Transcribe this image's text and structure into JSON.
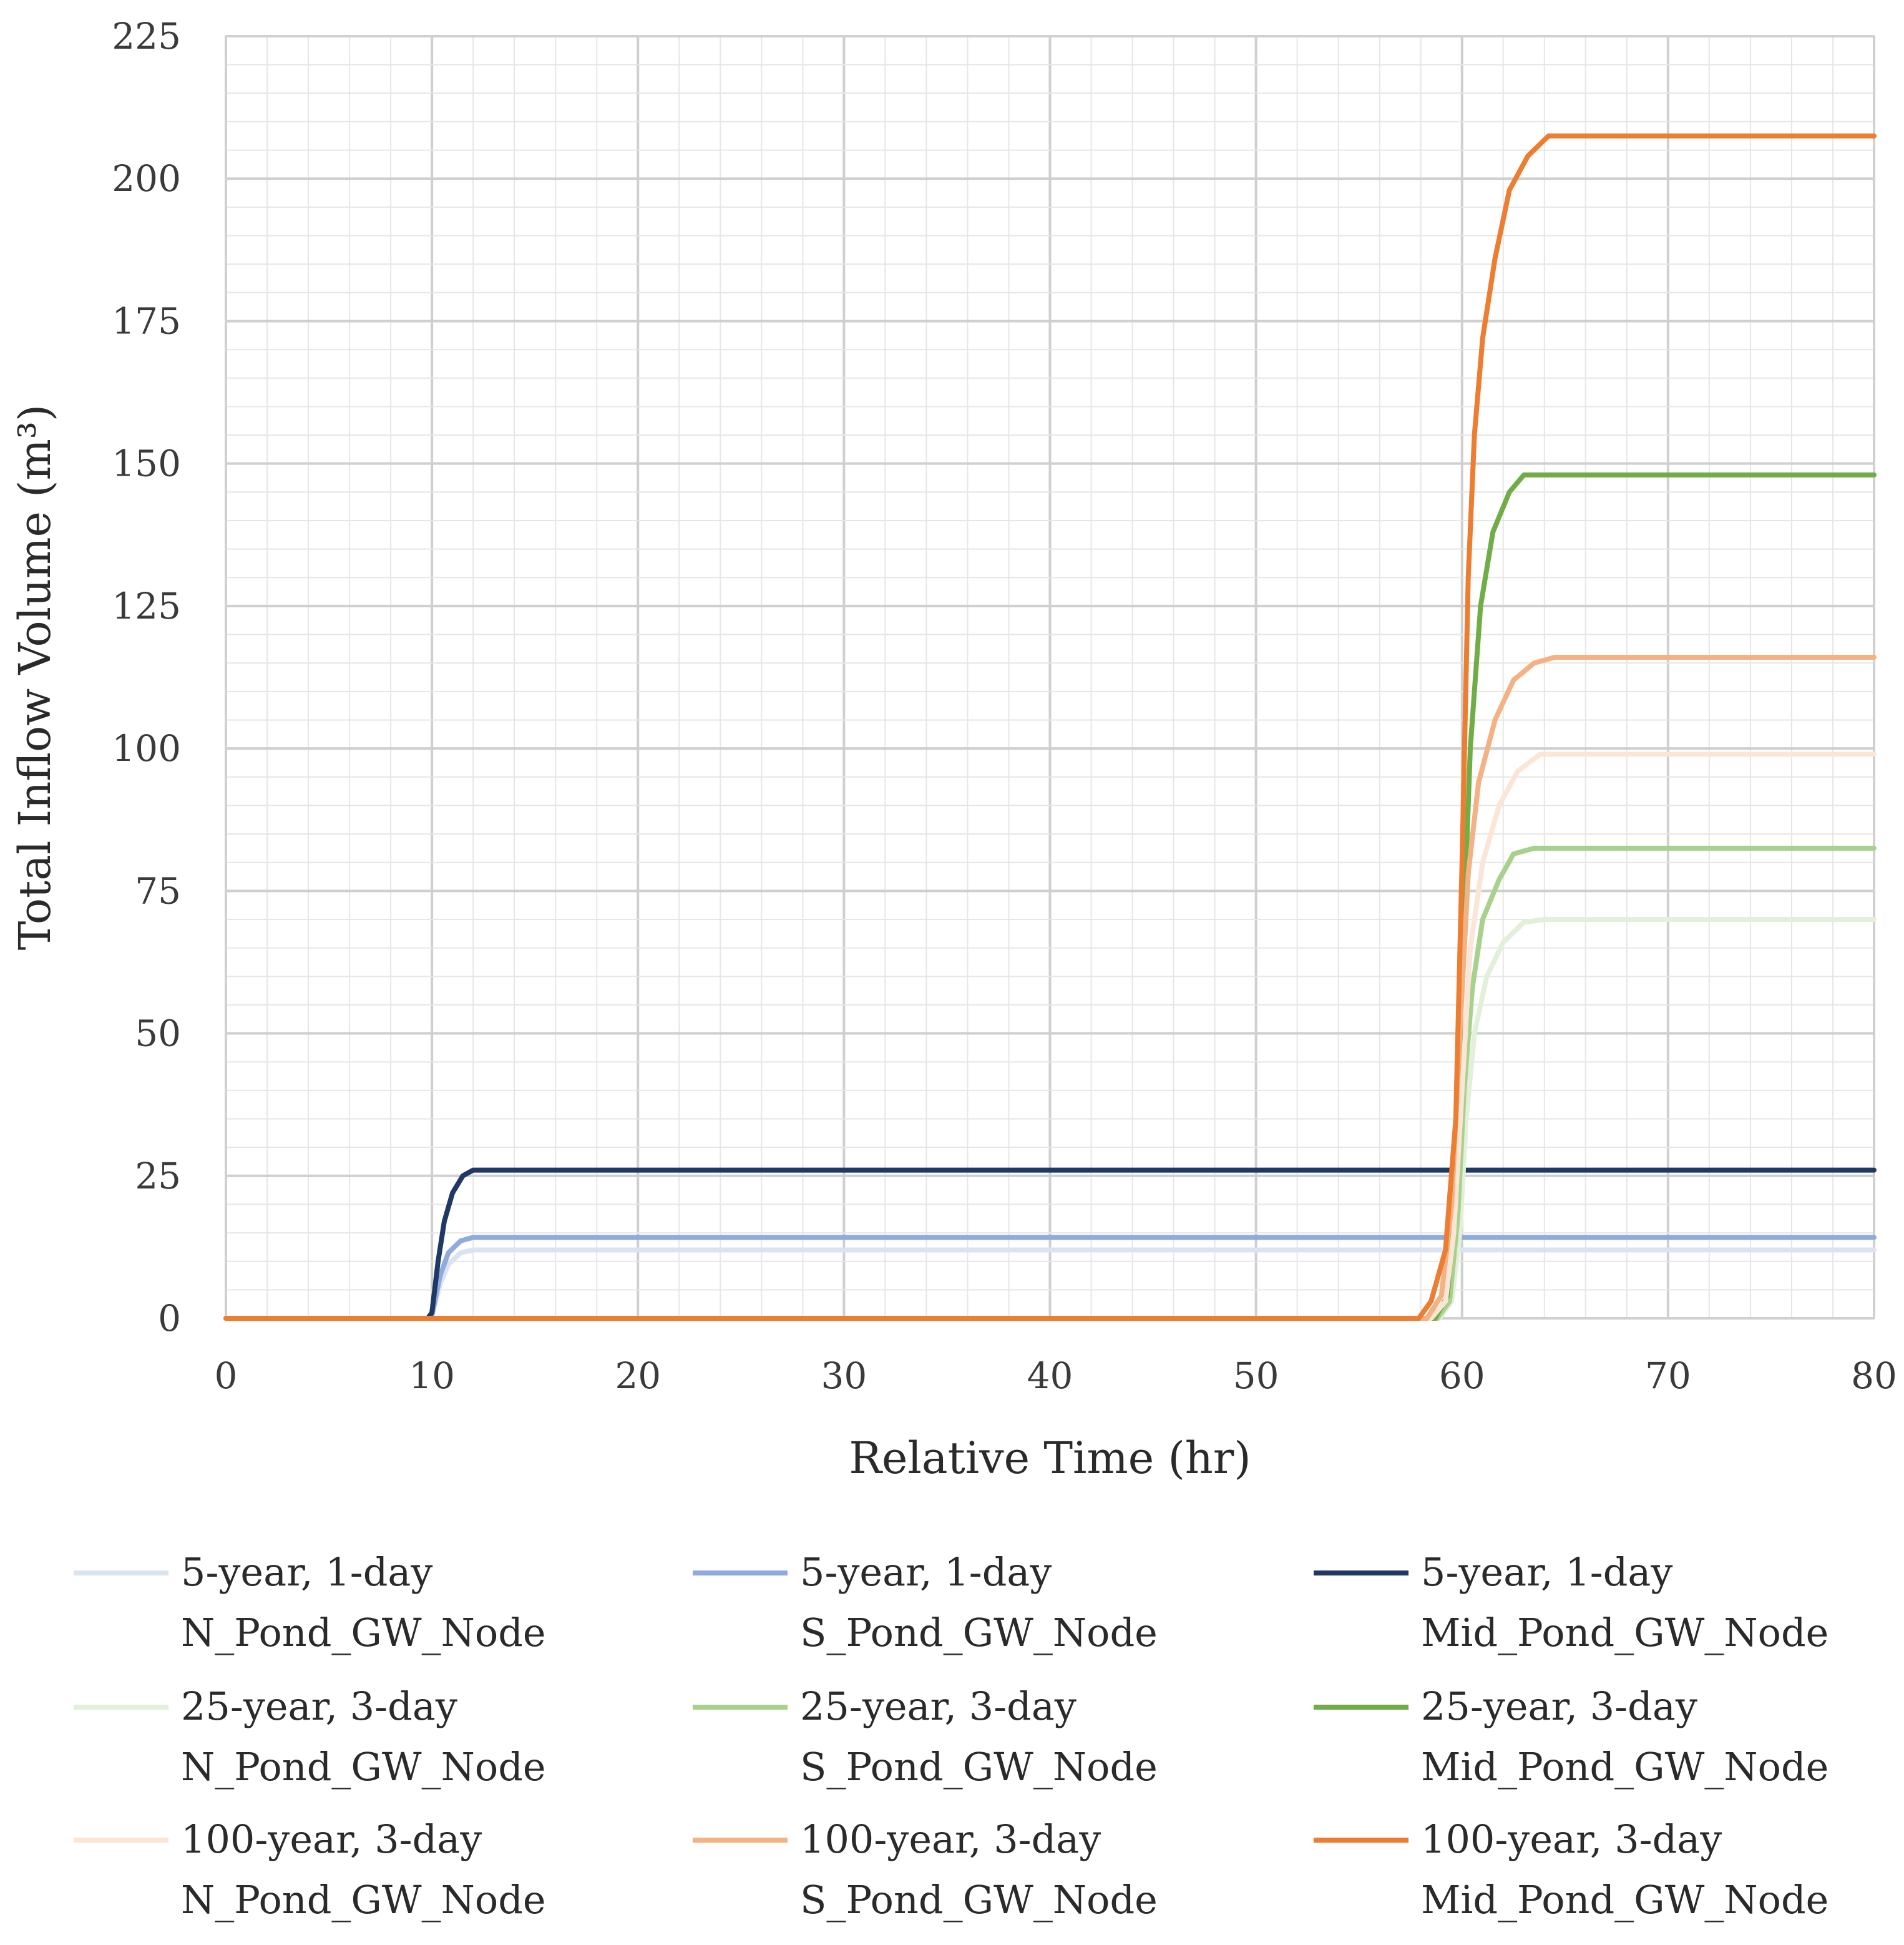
{
  "chart_data": {
    "type": "line",
    "title": "",
    "xlabel": "Relative Time (hr)",
    "ylabel": "Total Inflow Volume (m³)",
    "xlim": [
      0,
      80
    ],
    "ylim": [
      0,
      225
    ],
    "xticks": [
      0,
      10,
      20,
      30,
      40,
      50,
      60,
      70,
      80
    ],
    "yticks": [
      0,
      25,
      50,
      75,
      100,
      125,
      150,
      175,
      200,
      225
    ],
    "grid": "major and minor",
    "legend_position": "bottom",
    "series": [
      {
        "name": [
          "5-year, 1-day",
          "N_Pond_GW_Node"
        ],
        "color": "#dbe3f3",
        "points": [
          [
            0,
            0
          ],
          [
            9.8,
            0
          ],
          [
            10,
            0.5
          ],
          [
            10.4,
            6
          ],
          [
            10.8,
            9.5
          ],
          [
            11.4,
            11.5
          ],
          [
            12,
            12
          ],
          [
            80,
            12
          ]
        ]
      },
      {
        "name": [
          "5-year, 1-day",
          "S_Pond_GW_Node"
        ],
        "color": "#8faadc",
        "points": [
          [
            0,
            0
          ],
          [
            9.8,
            0
          ],
          [
            10,
            0.5
          ],
          [
            10.4,
            7.5
          ],
          [
            10.8,
            11.5
          ],
          [
            11.4,
            13.6
          ],
          [
            12,
            14.2
          ],
          [
            80,
            14.2
          ]
        ]
      },
      {
        "name": [
          "5-year, 1-day",
          "Mid_Pond_GW_Node"
        ],
        "color": "#203864",
        "points": [
          [
            0,
            0
          ],
          [
            9.8,
            0
          ],
          [
            10,
            1
          ],
          [
            10.3,
            10
          ],
          [
            10.6,
            17
          ],
          [
            11,
            22
          ],
          [
            11.5,
            25
          ],
          [
            12,
            26
          ],
          [
            80,
            26
          ]
        ]
      },
      {
        "name": [
          "25-year, 3-day",
          "N_Pond_GW_Node"
        ],
        "color": "#e2f0d9",
        "points": [
          [
            0,
            0
          ],
          [
            58.9,
            0
          ],
          [
            59.5,
            3
          ],
          [
            59.9,
            15
          ],
          [
            60.2,
            35
          ],
          [
            60.6,
            50
          ],
          [
            61.2,
            60
          ],
          [
            62,
            66
          ],
          [
            63,
            69.5
          ],
          [
            64,
            70
          ],
          [
            80,
            70
          ]
        ]
      },
      {
        "name": [
          "25-year, 3-day",
          "S_Pond_GW_Node"
        ],
        "color": "#a9d18e",
        "points": [
          [
            0,
            0
          ],
          [
            58.8,
            0
          ],
          [
            59.4,
            3
          ],
          [
            59.8,
            18
          ],
          [
            60.1,
            40
          ],
          [
            60.5,
            58
          ],
          [
            61,
            70
          ],
          [
            61.8,
            77
          ],
          [
            62.5,
            81.5
          ],
          [
            63.5,
            82.5
          ],
          [
            80,
            82.5
          ]
        ]
      },
      {
        "name": [
          "25-year, 3-day",
          "Mid_Pond_GW_Node"
        ],
        "color": "#70ad47",
        "points": [
          [
            0,
            0
          ],
          [
            58.7,
            0
          ],
          [
            59.3,
            4
          ],
          [
            59.7,
            25
          ],
          [
            60,
            60
          ],
          [
            60.4,
            100
          ],
          [
            60.9,
            125
          ],
          [
            61.5,
            138
          ],
          [
            62.3,
            145
          ],
          [
            63,
            148
          ],
          [
            80,
            148
          ]
        ]
      },
      {
        "name": [
          "100-year, 3-day",
          "N_Pond_GW_Node"
        ],
        "color": "#fbe5d6",
        "points": [
          [
            0,
            0
          ],
          [
            58.5,
            0
          ],
          [
            59.2,
            3
          ],
          [
            59.6,
            15
          ],
          [
            60,
            40
          ],
          [
            60.4,
            65
          ],
          [
            61,
            80
          ],
          [
            61.8,
            90
          ],
          [
            62.7,
            96
          ],
          [
            63.8,
            99
          ],
          [
            80,
            99
          ]
        ]
      },
      {
        "name": [
          "100-year, 3-day",
          "S_Pond_GW_Node"
        ],
        "color": "#f4b183",
        "points": [
          [
            0,
            0
          ],
          [
            58.3,
            0
          ],
          [
            59,
            4
          ],
          [
            59.5,
            20
          ],
          [
            59.9,
            50
          ],
          [
            60.3,
            78
          ],
          [
            60.8,
            94
          ],
          [
            61.6,
            105
          ],
          [
            62.5,
            112
          ],
          [
            63.5,
            115
          ],
          [
            64.5,
            116
          ],
          [
            80,
            116
          ]
        ]
      },
      {
        "name": [
          "100-year, 3-day",
          "Mid_Pond_GW_Node"
        ],
        "color": "#ed7d31",
        "points": [
          [
            0,
            0
          ],
          [
            57.9,
            0
          ],
          [
            58.5,
            3
          ],
          [
            59.2,
            12
          ],
          [
            59.7,
            35
          ],
          [
            60,
            80
          ],
          [
            60.3,
            130
          ],
          [
            60.6,
            155
          ],
          [
            61,
            172
          ],
          [
            61.6,
            186
          ],
          [
            62.3,
            198
          ],
          [
            63.2,
            204
          ],
          [
            64.2,
            207.5
          ],
          [
            80,
            207.5
          ]
        ]
      }
    ]
  }
}
